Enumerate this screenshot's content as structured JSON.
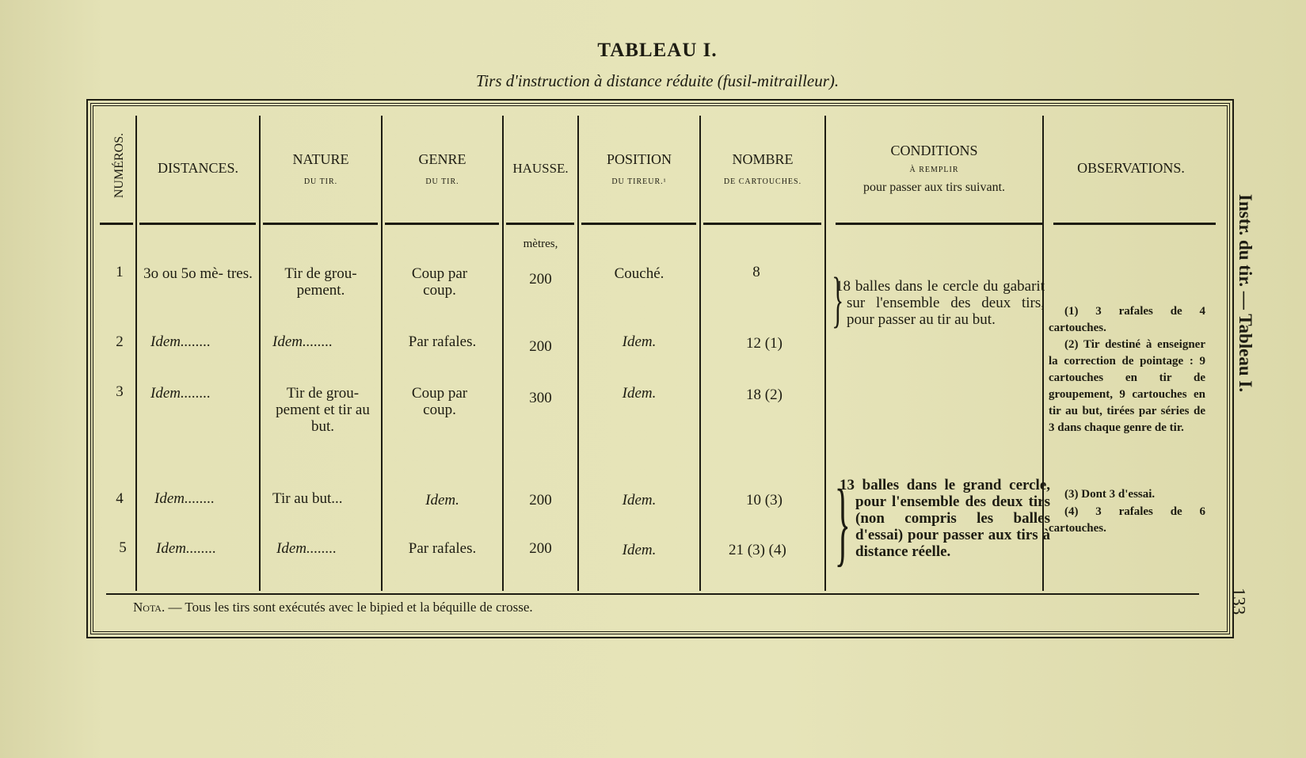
{
  "title": "TABLEAU I.",
  "subtitle": "Tirs d'instruction à distance réduite (fusil-mitrailleur).",
  "headers": {
    "numeros": "NUMÉROS.",
    "distances": "DISTANCES.",
    "nature": {
      "main": "NATURE",
      "sub": "du tir."
    },
    "genre": {
      "main": "GENRE",
      "sub": "du tir."
    },
    "hausse": "HAUSSE.",
    "position": {
      "main": "POSITION",
      "sub": "du tireur.¹"
    },
    "nombre": {
      "main": "NOMBRE",
      "sub": "de cartouches."
    },
    "conditions": {
      "main": "CONDITIONS",
      "sub": "à remplir",
      "sub2": "pour passer aux tirs suivant."
    },
    "observations": "OBSERVATIONS."
  },
  "hausse_unit": "mètres,",
  "rows": [
    {
      "num": "1",
      "distance": "3o ou 5o mè- tres.",
      "nature": "Tir de grou- pement.",
      "genre": "Coup par coup.",
      "hausse": "200",
      "position": "Couché.",
      "nombre": "8"
    },
    {
      "num": "2",
      "distance": "Idem........",
      "nature": "Idem........",
      "genre": "Par rafales.",
      "hausse": "200",
      "position": "Idem.",
      "nombre": "12 (1)"
    },
    {
      "num": "3",
      "distance": "Idem........",
      "nature": "Tir de grou- pement et tir au but.",
      "genre": "Coup par coup.",
      "hausse": "300",
      "position": "Idem.",
      "nombre": "18 (2)"
    },
    {
      "num": "4",
      "distance": "Idem........",
      "nature": "Tir au but...",
      "genre": "Idem.",
      "hausse": "200",
      "position": "Idem.",
      "nombre": "10 (3)"
    },
    {
      "num": "5",
      "distance": "Idem........",
      "nature": "Idem........",
      "genre": "Par rafales.",
      "hausse": "200",
      "position": "Idem.",
      "nombre": "21 (3) (4)"
    }
  ],
  "conditions": [
    "18 balles dans le cercle du gabarit sur l'ensemble des deux tirs, pour passer au tir au but.",
    "13 balles dans le grand cercle, pour l'ensemble des deux tirs (non compris les balles d'essai) pour passer aux tirs à distance réelle."
  ],
  "observations": [
    "(1) 3 rafales de 4 cartouches.",
    "(2) Tir destiné à enseigner la correction de pointage : 9 cartouches en tir de groupement, 9 cartouches en tir au but, tirées par séries de 3 dans chaque genre de tir.",
    "(3) Dont 3 d'essai.",
    "(4) 3 rafales de 6 cartouches."
  ],
  "nota": {
    "label": "Nota.",
    "text": " — Tous les tirs sont exécutés avec le bipied et la béquille de crosse."
  },
  "side_running_head": "Instr. du tir. — Tableau I.",
  "page_number": "133"
}
